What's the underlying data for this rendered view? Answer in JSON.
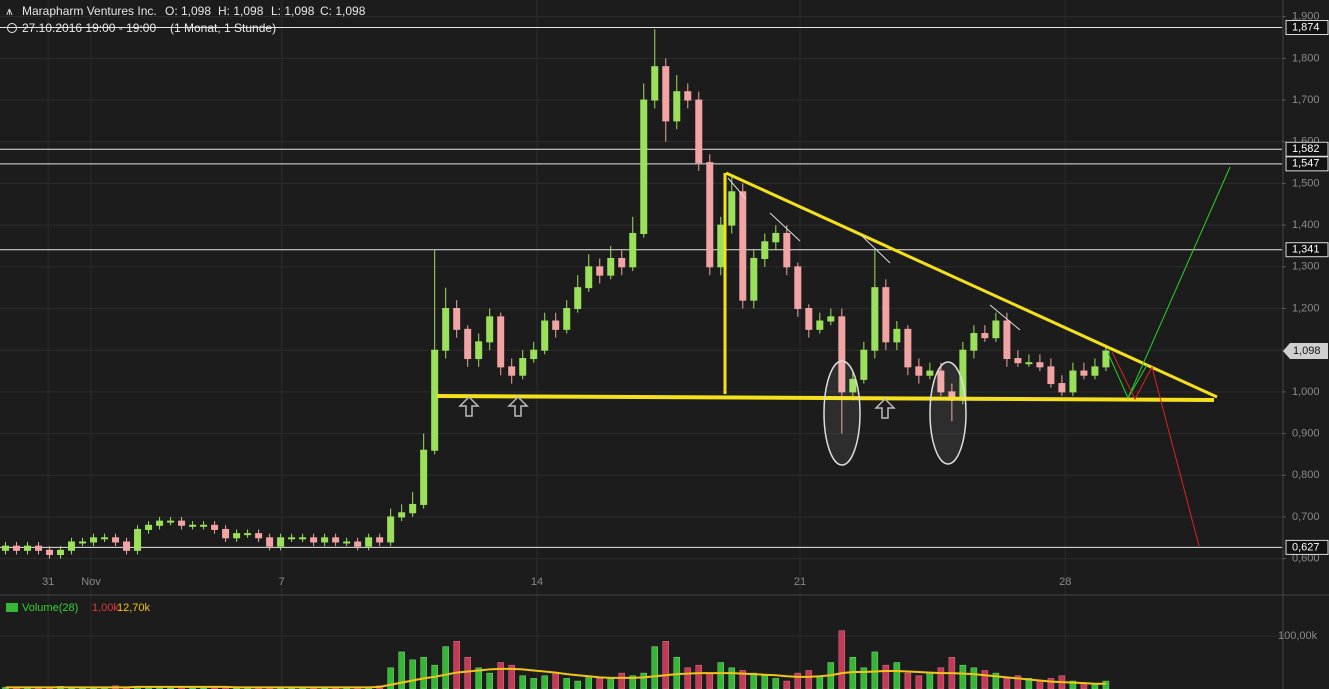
{
  "header": {
    "name": "Marapharm Ventures Inc.",
    "open": "O: 1,098",
    "high": "H: 1,098",
    "low": "L: 1,098",
    "close": "C: 1,098",
    "date": "27.10.2016 19:00 - 19:00",
    "period": "(1 Monat, 1 Stunde)"
  },
  "chart_data": [
    {
      "type": "candlestick",
      "up_color": "#9be05a",
      "down_color": "#f2a3a3",
      "grid": true,
      "x": [
        0,
        1,
        2,
        3,
        4,
        5,
        6,
        7,
        8,
        9,
        10,
        11,
        12,
        13,
        14,
        15,
        16,
        17,
        18,
        19,
        20,
        21,
        22,
        23,
        24,
        25,
        26,
        27,
        28,
        29,
        30,
        31,
        32,
        33,
        34,
        35,
        36,
        37,
        38,
        39,
        40,
        41,
        42,
        43,
        44,
        45,
        46,
        47,
        48,
        49,
        50,
        51,
        52,
        53,
        54,
        55,
        56,
        57,
        58,
        59,
        60,
        61,
        62,
        63,
        64,
        65,
        66,
        67,
        68,
        69,
        70,
        71,
        72,
        73,
        74,
        75,
        76,
        77,
        78,
        79,
        80,
        81,
        82,
        83,
        84,
        85,
        86,
        87,
        88,
        89,
        90,
        91,
        92,
        93,
        94,
        95,
        96,
        97,
        98,
        99,
        100
      ],
      "open": [
        0.62,
        0.63,
        0.62,
        0.63,
        0.62,
        0.61,
        0.62,
        0.64,
        0.64,
        0.65,
        0.65,
        0.64,
        0.62,
        0.67,
        0.68,
        0.69,
        0.69,
        0.68,
        0.68,
        0.68,
        0.67,
        0.65,
        0.66,
        0.66,
        0.65,
        0.63,
        0.65,
        0.65,
        0.65,
        0.64,
        0.65,
        0.64,
        0.64,
        0.63,
        0.65,
        0.64,
        0.7,
        0.71,
        0.73,
        0.86,
        1.1,
        1.2,
        1.15,
        1.08,
        1.12,
        1.18,
        1.06,
        1.04,
        1.08,
        1.1,
        1.17,
        1.15,
        1.2,
        1.25,
        1.3,
        1.28,
        1.32,
        1.3,
        1.38,
        1.7,
        1.78,
        1.65,
        1.72,
        1.7,
        1.55,
        1.3,
        1.4,
        1.48,
        1.22,
        1.32,
        1.36,
        1.38,
        1.3,
        1.2,
        1.15,
        1.17,
        1.18,
        1.0,
        1.03,
        1.1,
        1.25,
        1.12,
        1.15,
        1.06,
        1.04,
        1.05,
        1.0,
        0.98,
        1.1,
        1.14,
        1.13,
        1.17,
        1.08,
        1.07,
        1.07,
        1.06,
        1.02,
        1.0,
        1.05,
        1.04,
        1.06
      ],
      "high": [
        0.64,
        0.64,
        0.64,
        0.64,
        0.63,
        0.63,
        0.65,
        0.65,
        0.66,
        0.66,
        0.66,
        0.65,
        0.68,
        0.69,
        0.7,
        0.7,
        0.7,
        0.69,
        0.69,
        0.69,
        0.68,
        0.67,
        0.67,
        0.67,
        0.66,
        0.66,
        0.66,
        0.66,
        0.66,
        0.66,
        0.66,
        0.65,
        0.65,
        0.66,
        0.66,
        0.72,
        0.73,
        0.76,
        0.9,
        1.34,
        1.25,
        1.22,
        1.16,
        1.14,
        1.2,
        1.19,
        1.08,
        1.1,
        1.12,
        1.19,
        1.19,
        1.22,
        1.28,
        1.33,
        1.32,
        1.35,
        1.34,
        1.42,
        1.74,
        1.87,
        1.8,
        1.76,
        1.74,
        1.72,
        1.57,
        1.42,
        1.52,
        1.5,
        1.34,
        1.38,
        1.4,
        1.4,
        1.31,
        1.21,
        1.19,
        1.2,
        1.2,
        1.05,
        1.12,
        1.34,
        1.27,
        1.17,
        1.16,
        1.08,
        1.07,
        1.07,
        1.02,
        1.12,
        1.16,
        1.16,
        1.19,
        1.19,
        1.1,
        1.09,
        1.09,
        1.08,
        1.04,
        1.07,
        1.07,
        1.08,
        1.11
      ],
      "low": [
        0.61,
        0.61,
        0.61,
        0.61,
        0.6,
        0.6,
        0.61,
        0.63,
        0.63,
        0.64,
        0.63,
        0.61,
        0.61,
        0.66,
        0.67,
        0.68,
        0.67,
        0.67,
        0.67,
        0.66,
        0.64,
        0.64,
        0.65,
        0.64,
        0.62,
        0.62,
        0.64,
        0.64,
        0.63,
        0.63,
        0.63,
        0.63,
        0.62,
        0.62,
        0.63,
        0.63,
        0.69,
        0.7,
        0.72,
        0.85,
        1.08,
        1.13,
        1.06,
        1.06,
        1.1,
        1.04,
        1.02,
        1.03,
        1.07,
        1.09,
        1.13,
        1.14,
        1.19,
        1.24,
        1.26,
        1.27,
        1.28,
        1.29,
        1.37,
        1.68,
        1.6,
        1.63,
        1.68,
        1.53,
        1.28,
        1.28,
        1.38,
        1.2,
        1.2,
        1.3,
        1.34,
        1.28,
        1.18,
        1.13,
        1.14,
        1.16,
        0.9,
        0.98,
        1.02,
        1.08,
        1.1,
        1.1,
        1.04,
        1.02,
        1.03,
        0.99,
        0.93,
        0.97,
        1.08,
        1.12,
        1.12,
        1.06,
        1.06,
        1.06,
        1.05,
        1.01,
        0.99,
        0.99,
        1.03,
        1.03,
        1.05
      ],
      "close": [
        0.63,
        0.62,
        0.63,
        0.62,
        0.61,
        0.62,
        0.64,
        0.64,
        0.65,
        0.65,
        0.64,
        0.62,
        0.67,
        0.68,
        0.69,
        0.69,
        0.68,
        0.68,
        0.68,
        0.67,
        0.65,
        0.66,
        0.66,
        0.65,
        0.63,
        0.65,
        0.65,
        0.65,
        0.64,
        0.65,
        0.64,
        0.64,
        0.63,
        0.65,
        0.64,
        0.7,
        0.71,
        0.73,
        0.86,
        1.1,
        1.2,
        1.15,
        1.08,
        1.12,
        1.18,
        1.06,
        1.04,
        1.08,
        1.1,
        1.17,
        1.15,
        1.2,
        1.25,
        1.3,
        1.28,
        1.32,
        1.3,
        1.38,
        1.7,
        1.78,
        1.65,
        1.72,
        1.7,
        1.55,
        1.3,
        1.4,
        1.48,
        1.22,
        1.32,
        1.36,
        1.38,
        1.3,
        1.2,
        1.15,
        1.17,
        1.18,
        1.0,
        1.03,
        1.1,
        1.25,
        1.12,
        1.15,
        1.06,
        1.04,
        1.05,
        1.0,
        0.98,
        1.1,
        1.14,
        1.13,
        1.17,
        1.08,
        1.07,
        1.07,
        1.06,
        1.02,
        1.0,
        1.05,
        1.04,
        1.06,
        1.098
      ],
      "xlim": [
        -0.5,
        116
      ],
      "xticks": [
        {
          "value": 3.87,
          "label": "31"
        },
        {
          "value": 7.77,
          "label": "Nov"
        },
        {
          "value": 25.1,
          "label": "7"
        },
        {
          "value": 48.3,
          "label": "14"
        },
        {
          "value": 72.2,
          "label": "21"
        },
        {
          "value": 96.3,
          "label": "28"
        }
      ],
      "ylim": [
        0.52,
        1.94
      ],
      "yticks": [
        {
          "value": 0.6,
          "label": "0,600"
        },
        {
          "value": 0.7,
          "label": "0,700"
        },
        {
          "value": 0.8,
          "label": "0,800"
        },
        {
          "value": 0.9,
          "label": "0,900"
        },
        {
          "value": 1.0,
          "label": "1,000"
        },
        {
          "value": 1.1,
          "label": "1,100"
        },
        {
          "value": 1.2,
          "label": "1,200"
        },
        {
          "value": 1.3,
          "label": "1,300"
        },
        {
          "value": 1.4,
          "label": "1,400"
        },
        {
          "value": 1.5,
          "label": "1,500"
        },
        {
          "value": 1.6,
          "label": "1,600"
        },
        {
          "value": 1.7,
          "label": "1,700"
        },
        {
          "value": 1.8,
          "label": "1,800"
        },
        {
          "value": 1.9,
          "label": "1,900"
        }
      ],
      "levels": [
        {
          "value": 1.874,
          "label": "1,874"
        },
        {
          "value": 1.582,
          "label": "1,582"
        },
        {
          "value": 1.547,
          "label": "1,547"
        },
        {
          "value": 1.341,
          "label": "1,341"
        },
        {
          "value": 0.627,
          "label": "0,627"
        }
      ],
      "last_price": {
        "value": 1.098,
        "label": "1,098"
      }
    },
    {
      "type": "bar",
      "title": "Volume(28)",
      "color": "#f0c419",
      "readouts": [
        {
          "value": 1000,
          "label": "1,00k",
          "color": "#e03a3a"
        },
        {
          "value": 12700,
          "label": "12,70k",
          "color": "#f0c419"
        }
      ],
      "values": [
        3000,
        2000,
        4000,
        2000,
        3000,
        5000,
        2000,
        3000,
        4000,
        2000,
        6000,
        3000,
        5000,
        4000,
        3000,
        2000,
        3000,
        2000,
        2000,
        4000,
        3000,
        2000,
        3000,
        2000,
        3000,
        2000,
        2000,
        3000,
        2000,
        2000,
        3000,
        2000,
        4000,
        3000,
        6000,
        40000,
        70000,
        55000,
        60000,
        45000,
        80000,
        90000,
        60000,
        40000,
        30000,
        50000,
        45000,
        25000,
        20000,
        25000,
        30000,
        20000,
        15000,
        25000,
        20000,
        20000,
        30000,
        25000,
        30000,
        80000,
        90000,
        60000,
        40000,
        45000,
        30000,
        50000,
        40000,
        35000,
        30000,
        25000,
        20000,
        15000,
        30000,
        35000,
        25000,
        50000,
        110000,
        60000,
        40000,
        70000,
        45000,
        50000,
        30000,
        25000,
        30000,
        40000,
        60000,
        45000,
        40000,
        35000,
        30000,
        20000,
        25000,
        20000,
        15000,
        20000,
        25000,
        15000,
        12000,
        10000,
        15000
      ],
      "ma": [
        3000,
        3000,
        3000,
        3000,
        3000,
        3000,
        3000,
        3000,
        3000,
        3000,
        3000,
        3000,
        4000,
        4000,
        4000,
        4000,
        4000,
        4000,
        4000,
        4000,
        4000,
        3000,
        3000,
        3000,
        3000,
        3000,
        3000,
        3000,
        3000,
        3000,
        3000,
        3000,
        3000,
        3000,
        4000,
        8000,
        12000,
        16000,
        20000,
        23000,
        27000,
        31000,
        33000,
        35000,
        37000,
        38000,
        38000,
        37000,
        35000,
        33000,
        31000,
        28000,
        26000,
        24000,
        22000,
        21000,
        21000,
        21000,
        22000,
        24000,
        26000,
        28000,
        29000,
        30000,
        30000,
        30000,
        30000,
        29000,
        28000,
        27000,
        26000,
        24000,
        23000,
        23000,
        24000,
        26000,
        30000,
        32000,
        32000,
        33000,
        34000,
        34000,
        33000,
        32000,
        31000,
        30000,
        30000,
        29000,
        28000,
        26000,
        24000,
        22000,
        20000,
        18000,
        16000,
        14000,
        13000,
        12000,
        11000,
        10000,
        10000
      ],
      "ylim": [
        0,
        168000
      ],
      "yticks": [
        {
          "value": 100000,
          "label": "100,00k"
        }
      ]
    }
  ]
}
